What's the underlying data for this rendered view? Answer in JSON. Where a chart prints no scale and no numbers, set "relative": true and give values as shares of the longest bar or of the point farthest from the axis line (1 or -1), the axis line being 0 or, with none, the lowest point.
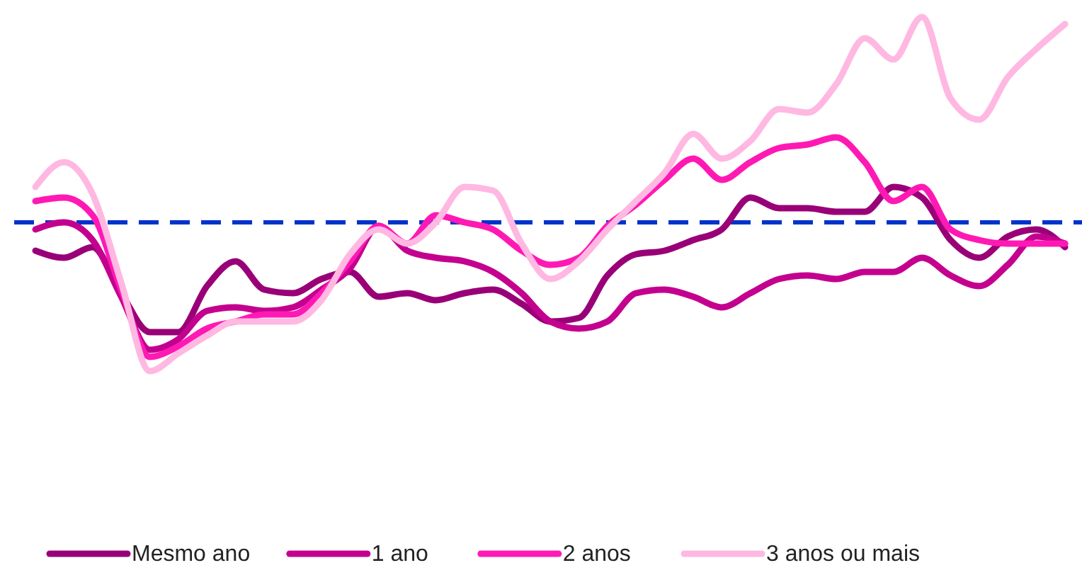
{
  "chart_data": {
    "type": "line",
    "relative": true,
    "categories": [
      null,
      null,
      null,
      null,
      null,
      null,
      null,
      null,
      null,
      null,
      null,
      null,
      null,
      null,
      null,
      null,
      null,
      null,
      null,
      null,
      null,
      null,
      null,
      null,
      null,
      null,
      null,
      null,
      null,
      null,
      null,
      null,
      null,
      null,
      null,
      null,
      null
    ],
    "series": [
      {
        "name": "Mesmo ano",
        "color": "#990077",
        "values": [
          0.34,
          0.32,
          0.35,
          0.22,
          0.11,
          0.11,
          0.24,
          0.31,
          0.23,
          0.22,
          0.26,
          0.28,
          0.21,
          0.22,
          0.2,
          0.22,
          0.23,
          0.19,
          0.14,
          0.15,
          0.27,
          0.33,
          0.34,
          0.37,
          0.4,
          0.49,
          0.46,
          0.46,
          0.45,
          0.45,
          0.52,
          0.49,
          0.37,
          0.32,
          0.38,
          0.4,
          0.35
        ]
      },
      {
        "name": "1 ano",
        "color": "#c4008f",
        "values": [
          0.4,
          0.42,
          0.37,
          0.21,
          0.06,
          0.09,
          0.17,
          0.18,
          0.17,
          0.18,
          0.23,
          0.29,
          0.41,
          0.34,
          0.32,
          0.31,
          0.28,
          0.22,
          0.14,
          0.12,
          0.14,
          0.22,
          0.23,
          0.21,
          0.18,
          0.22,
          0.26,
          0.27,
          0.26,
          0.28,
          0.28,
          0.32,
          0.27,
          0.24,
          0.3,
          0.38,
          0.36
        ]
      },
      {
        "name": "2 anos",
        "color": "#ff19b4",
        "values": [
          0.48,
          0.49,
          0.44,
          0.23,
          0.04,
          0.07,
          0.12,
          0.14,
          0.16,
          0.16,
          0.22,
          0.31,
          0.41,
          0.36,
          0.44,
          0.42,
          0.4,
          0.34,
          0.3,
          0.32,
          0.41,
          0.47,
          0.54,
          0.6,
          0.54,
          0.59,
          0.63,
          0.64,
          0.66,
          0.59,
          0.48,
          0.52,
          0.4,
          0.37,
          0.36,
          0.36,
          0.36
        ]
      },
      {
        "name": "3 anos ou mais",
        "color": "#ffb8e2",
        "values": [
          0.52,
          0.59,
          0.5,
          0.25,
          0.0,
          0.05,
          0.1,
          0.14,
          0.14,
          0.14,
          0.2,
          0.33,
          0.4,
          0.36,
          0.42,
          0.52,
          0.51,
          0.36,
          0.26,
          0.31,
          0.4,
          0.48,
          0.56,
          0.67,
          0.6,
          0.65,
          0.74,
          0.73,
          0.81,
          0.94,
          0.88,
          1.0,
          0.77,
          0.71,
          0.83,
          0.91,
          0.98
        ]
      }
    ],
    "ref_lines": [
      {
        "axis": "y",
        "value": 0.42,
        "color": "#0033cc",
        "line_style": "dashed"
      }
    ],
    "legend": "bottom",
    "line_style": "solid",
    "marker": "none"
  }
}
